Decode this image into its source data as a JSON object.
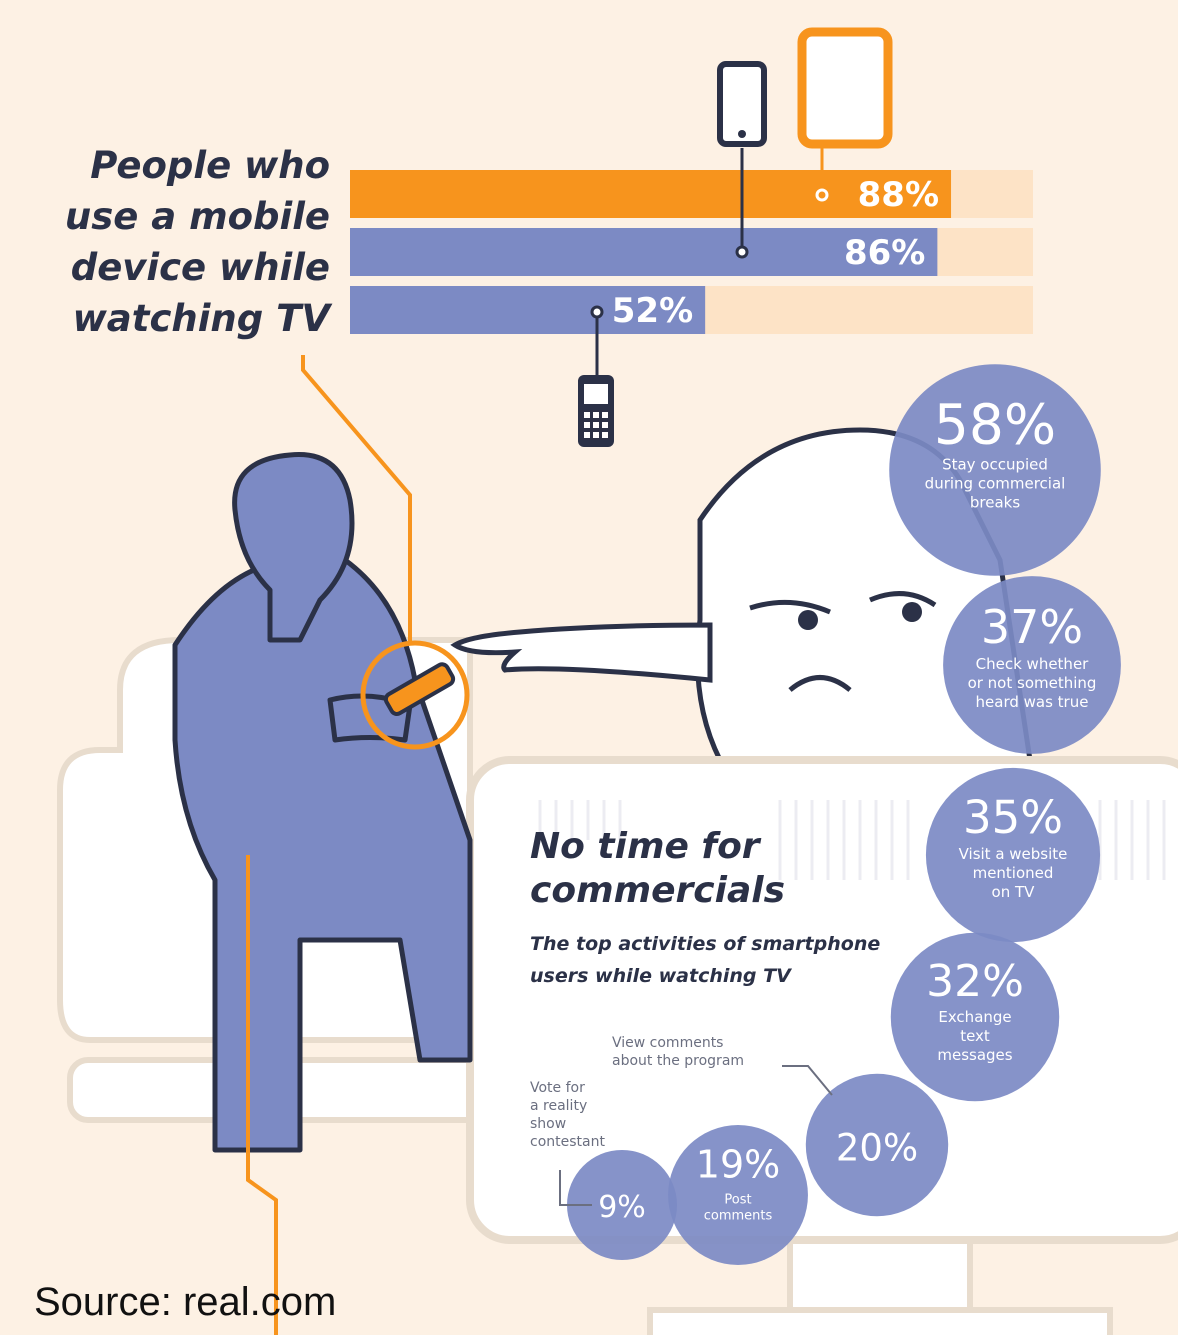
{
  "headline": {
    "lines": [
      "People who",
      "use a mobile",
      "device while",
      "watching TV"
    ]
  },
  "section": {
    "title_lines": [
      "No time for",
      "commercials"
    ],
    "subtitle_lines": [
      "The top activities of smartphone",
      "users while watching TV"
    ]
  },
  "source": "Source: real.com",
  "colors": {
    "orange": "#f7941d",
    "blue": "#7c8ac4",
    "dark": "#2b3147",
    "track": "#fde3c6",
    "background": "#fdf1e4"
  },
  "chart_data": [
    {
      "type": "bar",
      "orientation": "horizontal",
      "categories": [
        "Tablet",
        "Smartphone",
        "Cell phone"
      ],
      "values": [
        88,
        86,
        52
      ],
      "value_labels": [
        "88%",
        "86%",
        "52%"
      ],
      "xlim": [
        0,
        100
      ],
      "icons": [
        "tablet-icon",
        "smartphone-icon",
        "cell-phone-icon"
      ]
    },
    {
      "type": "bubble",
      "categories": [
        "Stay occupied during commercial breaks",
        "Check whether or not something heard was true",
        "Visit a website mentioned on TV",
        "Exchange text messages",
        "View comments about the program",
        "Post comments",
        "Vote for a reality show contestant"
      ],
      "values": [
        58,
        37,
        35,
        32,
        20,
        19,
        9
      ],
      "value_labels": [
        "58%",
        "37%",
        "35%",
        "32%",
        "20%",
        "19%",
        "9%"
      ]
    }
  ]
}
